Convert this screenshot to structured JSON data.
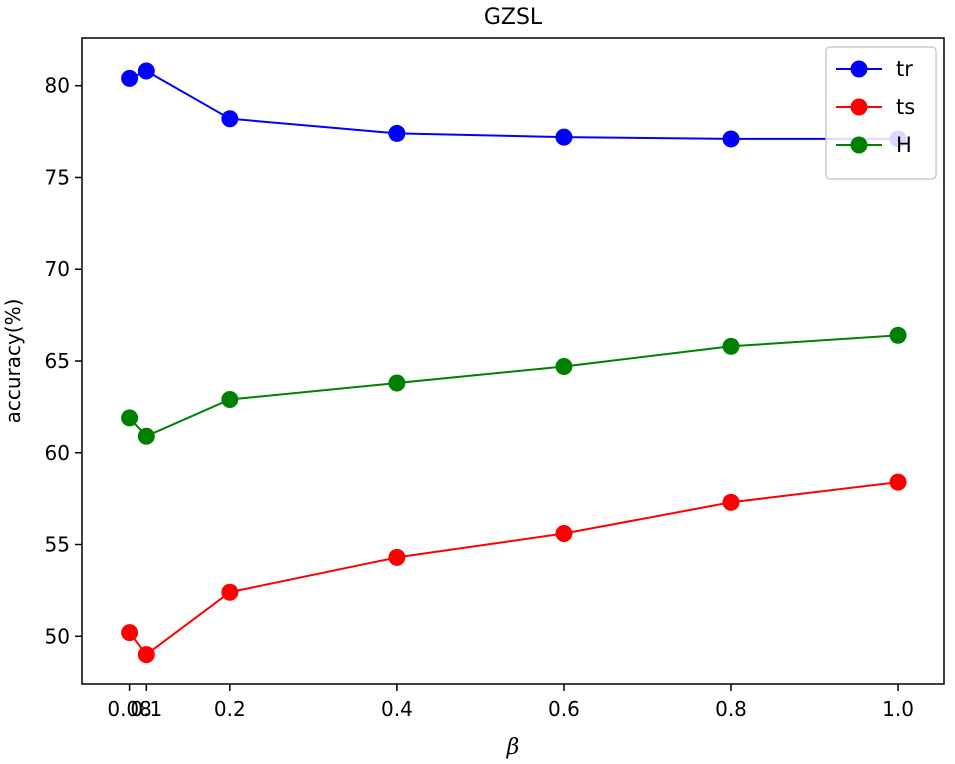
{
  "chart_data": {
    "type": "line",
    "title": "GZSL",
    "xlabel": "β",
    "ylabel": "accuracy(%)",
    "x": [
      0.08,
      0.1,
      0.2,
      0.4,
      0.6,
      0.8,
      1.0
    ],
    "x_tick_labels": [
      "0.08",
      "0.1",
      "0.2",
      "0.4",
      "0.6",
      "0.8",
      "1.0"
    ],
    "y_ticks": [
      50,
      55,
      60,
      65,
      70,
      75,
      80
    ],
    "y_tick_labels": [
      "50",
      "55",
      "60",
      "65",
      "70",
      "75",
      "80"
    ],
    "xlim": [
      0.023,
      1.055
    ],
    "ylim": [
      47.4,
      82.6
    ],
    "grid": false,
    "legend_position": "top-right",
    "series": [
      {
        "name": "tr",
        "color": "#0000ff",
        "values": [
          80.4,
          80.8,
          78.2,
          77.4,
          77.2,
          77.1,
          77.1
        ]
      },
      {
        "name": "ts",
        "color": "#ff0000",
        "values": [
          50.2,
          49.0,
          52.4,
          54.3,
          55.6,
          57.3,
          58.4
        ]
      },
      {
        "name": "H",
        "color": "#008000",
        "values": [
          61.9,
          60.9,
          62.9,
          63.8,
          64.7,
          65.8,
          66.4
        ]
      }
    ]
  }
}
